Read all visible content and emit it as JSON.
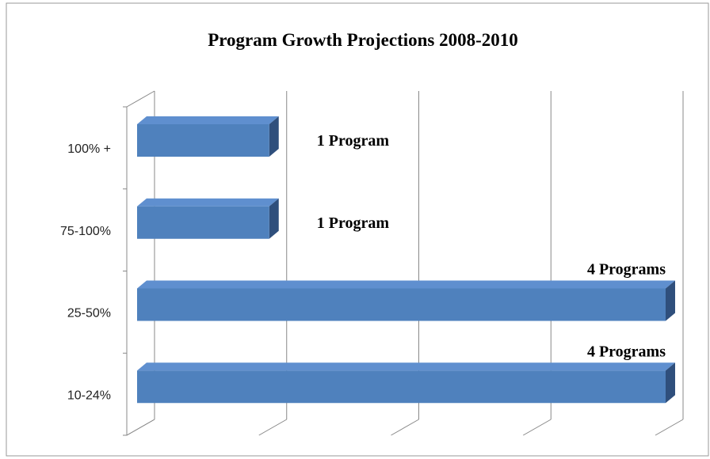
{
  "chart_data": {
    "type": "bar",
    "orientation": "horizontal",
    "title": "Program Growth Projections 2008-2010",
    "categories": [
      "100% +",
      "75-100%",
      "25-50%",
      "10-24%"
    ],
    "values": [
      1,
      1,
      4,
      4
    ],
    "value_labels": [
      "1 Program",
      "1 Program",
      "4 Programs",
      "4 Programs"
    ],
    "color": "#4f81bd",
    "xlim": [
      0,
      4
    ],
    "xticks": [
      0,
      1,
      2,
      3,
      4
    ],
    "grid": true
  }
}
